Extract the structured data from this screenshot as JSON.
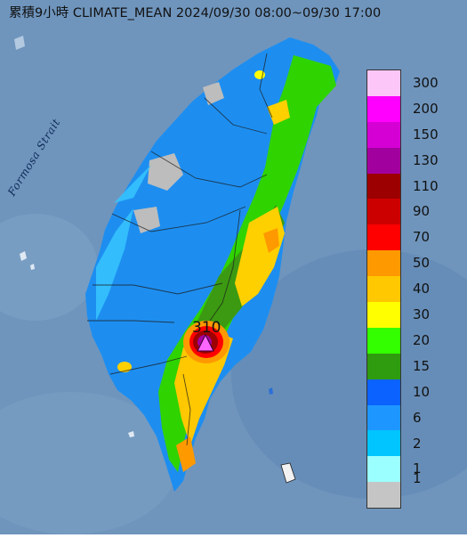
{
  "title": "累積9小時 CLIMATE_MEAN 2024/09/30 08:00~09/30 17:00",
  "strait_label": "Formosa Strait",
  "peak_label": "310",
  "legend": [
    {
      "label": "300",
      "color": "#fdc6f8"
    },
    {
      "label": "200",
      "color": "#ff00ff"
    },
    {
      "label": "150",
      "color": "#d400d4"
    },
    {
      "label": "130",
      "color": "#a2009e"
    },
    {
      "label": "110",
      "color": "#9d0000"
    },
    {
      "label": "90",
      "color": "#cd0000"
    },
    {
      "label": "70",
      "color": "#ff0000"
    },
    {
      "label": "50",
      "color": "#ff9900"
    },
    {
      "label": "40",
      "color": "#ffc800"
    },
    {
      "label": "30",
      "color": "#ffff00"
    },
    {
      "label": "20",
      "color": "#33ff00"
    },
    {
      "label": "15",
      "color": "#2f9b0e"
    },
    {
      "label": "10",
      "color": "#0b62ff"
    },
    {
      "label": "6",
      "color": "#1e96ff"
    },
    {
      "label": "2",
      "color": "#00c5ff"
    },
    {
      "label": "1",
      "color": "#9bffff"
    },
    {
      "label": "",
      "color": "#c5c5c5"
    }
  ],
  "extra_label": "1"
}
